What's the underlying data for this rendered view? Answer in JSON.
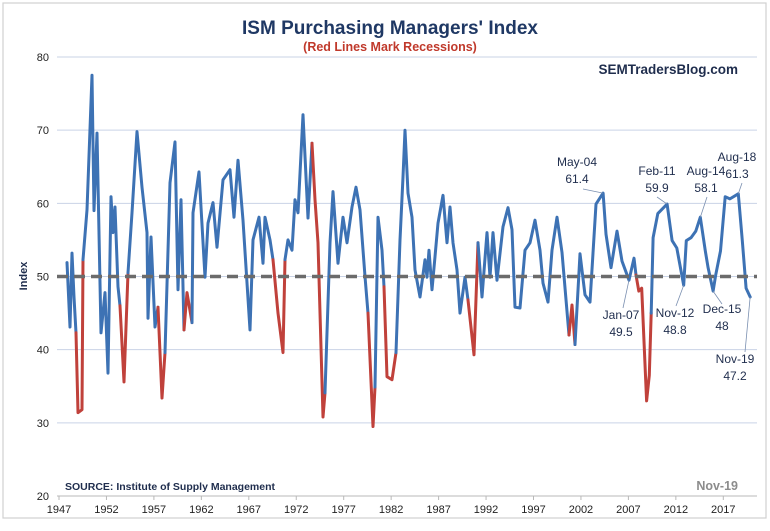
{
  "chart_data": {
    "type": "line",
    "title": "ISM Purchasing Managers' Index",
    "subtitle": "(Red Lines Mark Recessions)",
    "watermark": "SEMTradersBlog.com",
    "ylabel": "Index",
    "xlabel": "",
    "source": "SOURCE:  Institute of Supply Management",
    "date_stamp": "Nov-19",
    "ylim": [
      20,
      80
    ],
    "xlim": [
      1947,
      2020
    ],
    "y_ticks": [
      "20",
      "30",
      "40",
      "50",
      "60",
      "70",
      "80"
    ],
    "x_ticks": [
      "1947",
      "1952",
      "1957",
      "1962",
      "1967",
      "1972",
      "1977",
      "1982",
      "1987",
      "1992",
      "1997",
      "2002",
      "2007",
      "2012",
      "2017"
    ],
    "grid": true,
    "reference_line": {
      "value": 50,
      "style": "dashed",
      "color": "#6b6b6b"
    },
    "colors": {
      "series": "#3d72b4",
      "recession": "#c0413b",
      "title": "#1f3864",
      "subtitle": "#c0392b",
      "grid": "#c9d3e6"
    },
    "recessions": [
      [
        1948.7,
        1949.55
      ],
      [
        1953.4,
        1954.3
      ],
      [
        1957.4,
        1958.2
      ],
      [
        1960.1,
        1961.05
      ],
      [
        1969.5,
        1970.85
      ],
      [
        1973.6,
        1975.05
      ],
      [
        1979.5,
        1980.35
      ],
      [
        1981.2,
        1982.55
      ],
      [
        1990.0,
        1991.0
      ],
      [
        2000.7,
        2001.45
      ],
      [
        2007.8,
        2009.45
      ]
    ],
    "series": [
      {
        "x": [
          1947.84,
          1948.16,
          1948.37,
          1948.58,
          1948.79,
          1949.0,
          1949.42,
          1949.53,
          1949.95,
          1950.48,
          1950.69,
          1951.0,
          1951.43,
          1951.85,
          1952.16,
          1952.48,
          1952.69,
          1952.9,
          1953.22,
          1953.43,
          1953.85,
          1954.27,
          1954.69,
          1955.22,
          1955.75,
          1956.27,
          1956.38,
          1956.69,
          1957.12,
          1957.43,
          1957.85,
          1958.17,
          1958.7,
          1959.22,
          1959.54,
          1959.86,
          1960.17,
          1960.49,
          1961.01,
          1961.12,
          1961.75,
          1962.38,
          1962.7,
          1963.23,
          1963.65,
          1964.28,
          1965.02,
          1965.44,
          1965.86,
          1966.39,
          1967.13,
          1967.44,
          1968.07,
          1968.5,
          1968.71,
          1969.23,
          1969.55,
          1970.08,
          1970.6,
          1970.81,
          1971.13,
          1971.55,
          1971.87,
          1972.18,
          1972.71,
          1973.24,
          1973.66,
          1973.98,
          1974.29,
          1974.82,
          1975.03,
          1975.56,
          1975.87,
          1976.4,
          1976.93,
          1977.35,
          1977.87,
          1978.3,
          1978.72,
          1979.24,
          1979.56,
          1980.09,
          1980.3,
          1980.61,
          1981.04,
          1981.25,
          1981.56,
          1982.09,
          1982.51,
          1982.93,
          1983.25,
          1983.46,
          1983.78,
          1984.2,
          1984.51,
          1985.04,
          1985.57,
          1985.78,
          1985.99,
          1986.3,
          1986.62,
          1986.94,
          1987.46,
          1987.88,
          1988.2,
          1988.52,
          1988.94,
          1989.25,
          1989.78,
          1990.1,
          1990.73,
          1991.15,
          1991.57,
          1992.1,
          1992.42,
          1992.73,
          1993.15,
          1993.79,
          1994.31,
          1994.73,
          1995.05,
          1995.58,
          1996.1,
          1996.63,
          1997.16,
          1997.68,
          1998.0,
          1998.53,
          1998.95,
          1999.48,
          2000.0,
          2000.74,
          2001.06,
          2001.37,
          2001.9,
          2002.43,
          2002.95,
          2003.59,
          2004.33,
          2004.64,
          2005.17,
          2005.8,
          2006.33,
          2007.06,
          2007.59,
          2007.8,
          2008.1,
          2008.4,
          2008.75,
          2008.92,
          2009.2,
          2009.4,
          2009.6,
          2010.1,
          2011.08,
          2011.6,
          2012.1,
          2012.83,
          2013.1,
          2013.6,
          2014.1,
          2014.58,
          2015.1,
          2015.4,
          2015.92,
          2016.2,
          2016.7,
          2017.2,
          2017.7,
          2018.58,
          2019.0,
          2019.4,
          2019.83
        ],
        "y": [
          51.9,
          43.1,
          53.2,
          47.2,
          42.3,
          31.4,
          31.8,
          52.3,
          59.1,
          77.5,
          59,
          69.6,
          42.3,
          47.8,
          36.8,
          60.9,
          56,
          59.5,
          48.6,
          46,
          35.6,
          50.5,
          58.7,
          69.8,
          62.2,
          56,
          44.3,
          55.4,
          43.1,
          45.8,
          33.4,
          39.6,
          62.8,
          68.4,
          48.2,
          60.5,
          42.7,
          47.8,
          43.7,
          58.7,
          64.3,
          49.9,
          57.3,
          60.1,
          54,
          63.2,
          64.6,
          58.1,
          65.9,
          57.7,
          42.7,
          55,
          58.1,
          51.8,
          58.1,
          55,
          52.3,
          45,
          39.6,
          52.3,
          55,
          53.6,
          60.5,
          58.7,
          72.1,
          58,
          68.2,
          60.5,
          54.6,
          30.8,
          34.1,
          54.6,
          61.6,
          51.8,
          58.1,
          54.6,
          59.5,
          62.2,
          59.1,
          50,
          45,
          29.5,
          34.9,
          58.1,
          53.6,
          48.6,
          36.3,
          35.9,
          39.6,
          55,
          63.6,
          70,
          61.4,
          58.1,
          50.9,
          47.2,
          52.3,
          49.9,
          53.6,
          48.2,
          52.7,
          57.3,
          61.1,
          54.6,
          59.5,
          54.6,
          50.9,
          45,
          49.9,
          46.8,
          39.3,
          54.6,
          47.2,
          56,
          49.9,
          56,
          49.5,
          56.8,
          59.4,
          56.4,
          45.8,
          45.7,
          53.6,
          54.6,
          57.7,
          53.6,
          49.1,
          46.5,
          53.6,
          58.1,
          53.3,
          42,
          46.1,
          40.7,
          53.1,
          47.5,
          46.5,
          59.9,
          61.4,
          55.8,
          51.2,
          56.2,
          52.1,
          49.5,
          52.5,
          50.2,
          48,
          48.4,
          38,
          33,
          36.5,
          45,
          55.3,
          58.6,
          59.9,
          54.9,
          53.9,
          48.8,
          54.9,
          55.3,
          56.2,
          58.1,
          53.5,
          51.2,
          48,
          50.2,
          53.5,
          60.9,
          60.6,
          61.3,
          54.9,
          48.4,
          47.2
        ]
      }
    ],
    "annotations": [
      {
        "date": "May-04",
        "value": "61.4",
        "x": 2004.33,
        "y": 61.4
      },
      {
        "date": "Feb-11",
        "value": "59.9",
        "x": 2011.08,
        "y": 59.9
      },
      {
        "date": "Aug-14",
        "value": "58.1",
        "x": 2014.58,
        "y": 58.1
      },
      {
        "date": "Aug-18",
        "value": "61.3",
        "x": 2018.58,
        "y": 61.3
      },
      {
        "date": "Jan-07",
        "value": "49.5",
        "x": 2007.06,
        "y": 49.5
      },
      {
        "date": "Nov-12",
        "value": "48.8",
        "x": 2012.83,
        "y": 48.8
      },
      {
        "date": "Dec-15",
        "value": "48",
        "x": 2015.92,
        "y": 48
      },
      {
        "date": "Nov-19",
        "value": "47.2",
        "x": 2019.83,
        "y": 47.2
      }
    ]
  }
}
